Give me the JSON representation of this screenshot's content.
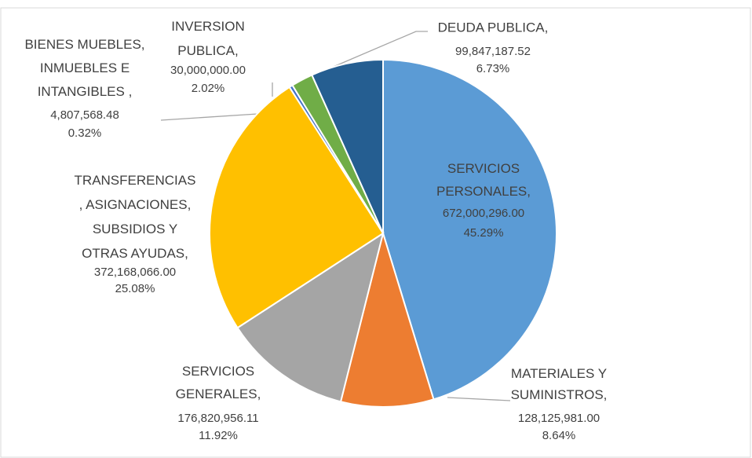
{
  "chart_data": {
    "type": "pie",
    "categories": [
      "SERVICIOS\nPERSONALES,",
      "MATERIALES Y\nSUMINISTROS,",
      "SERVICIOS\nGENERALES,",
      "TRANSFERENCIAS\n, ASIGNACIONES,\nSUBSIDIOS Y\nOTRAS AYUDAS,",
      "BIENES MUEBLES,\nINMUEBLES E\nINTANGIBLES ,",
      "INVERSION\nPUBLICA,",
      "DEUDA PUBLICA,"
    ],
    "values": [
      672000296.0,
      128125981.0,
      176820956.11,
      372168066.0,
      4807568.48,
      30000000.0,
      99847187.52
    ],
    "value_labels": [
      "672,000,296.00",
      "128,125,981.00",
      "176,820,956.11",
      "372,168,066.00",
      "4,807,568.48",
      "30,000,000.00",
      "99,847,187.52"
    ],
    "percent_labels": [
      "45.29%",
      "8.64%",
      "11.92%",
      "25.08%",
      "0.32%",
      "2.02%",
      "6.73%"
    ],
    "colors": [
      "#5b9bd5",
      "#ed7d31",
      "#a5a5a5",
      "#ffc000",
      "#4472c4",
      "#70ad47",
      "#255e91"
    ]
  }
}
